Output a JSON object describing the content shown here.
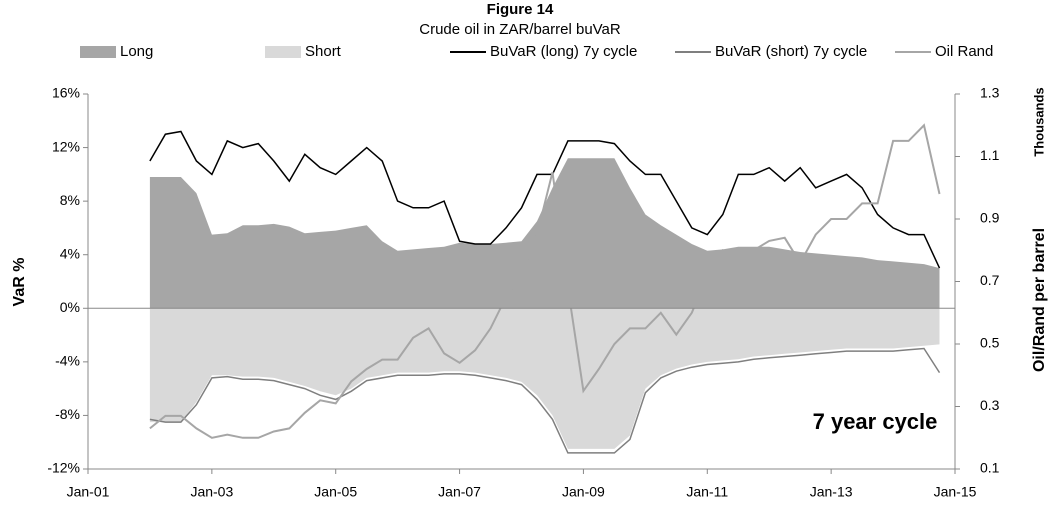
{
  "chart_data": {
    "type": "line",
    "title": "Figure 14",
    "subtitle": "Crude oil in ZAR/barrel buVaR",
    "ylabel": "VaR %",
    "y2label": "Oil/Rand per barrel",
    "y2unit": "Thousands",
    "annotation": "7 year cycle",
    "x": [
      2002,
      2002.25,
      2002.5,
      2002.75,
      2003,
      2003.25,
      2003.5,
      2003.75,
      2004,
      2004.25,
      2004.5,
      2004.75,
      2005,
      2005.25,
      2005.5,
      2005.75,
      2006,
      2006.25,
      2006.5,
      2006.75,
      2007,
      2007.25,
      2007.5,
      2007.75,
      2008,
      2008.25,
      2008.5,
      2008.75,
      2009,
      2009.25,
      2009.5,
      2009.75,
      2010,
      2010.25,
      2010.5,
      2010.75,
      2011,
      2011.25,
      2011.5,
      2011.75,
      2012,
      2012.25,
      2012.5,
      2012.75,
      2013,
      2013.25,
      2013.5,
      2013.75,
      2014,
      2014.25,
      2014.5,
      2014.75
    ],
    "xlim": [
      2001,
      2015
    ],
    "xticks": [
      {
        "value": 2001,
        "label": "Jan-01"
      },
      {
        "value": 2003,
        "label": "Jan-03"
      },
      {
        "value": 2005,
        "label": "Jan-05"
      },
      {
        "value": 2007,
        "label": "Jan-07"
      },
      {
        "value": 2009,
        "label": "Jan-09"
      },
      {
        "value": 2011,
        "label": "Jan-11"
      },
      {
        "value": 2013,
        "label": "Jan-13"
      },
      {
        "value": 2015,
        "label": "Jan-15"
      }
    ],
    "ylim": [
      -12,
      16
    ],
    "yticks": [
      {
        "value": -12,
        "label": "-12%"
      },
      {
        "value": -8,
        "label": "-8%"
      },
      {
        "value": -4,
        "label": "-4%"
      },
      {
        "value": 0,
        "label": "0%"
      },
      {
        "value": 4,
        "label": "4%"
      },
      {
        "value": 8,
        "label": "8%"
      },
      {
        "value": 12,
        "label": "12%"
      },
      {
        "value": 16,
        "label": "16%"
      }
    ],
    "y2lim": [
      0.1,
      1.3
    ],
    "y2ticks": [
      0.1,
      0.3,
      0.5,
      0.7,
      0.9,
      1.1,
      1.3
    ],
    "legend": "top",
    "series": [
      {
        "name": "Long",
        "style": "area",
        "color": "#a6a6a6",
        "values": [
          9.8,
          9.8,
          9.8,
          8.6,
          5.5,
          5.6,
          6.2,
          6.2,
          6.3,
          6.1,
          5.6,
          5.7,
          5.8,
          6.0,
          6.2,
          5.0,
          4.3,
          4.4,
          4.5,
          4.6,
          4.9,
          4.8,
          4.8,
          4.9,
          5.0,
          6.5,
          9.0,
          11.2,
          11.2,
          11.2,
          11.2,
          9.0,
          7.0,
          6.2,
          5.5,
          4.8,
          4.3,
          4.4,
          4.6,
          4.6,
          4.6,
          4.4,
          4.2,
          4.1,
          4.0,
          3.9,
          3.8,
          3.6,
          3.5,
          3.4,
          3.3,
          3.0
        ]
      },
      {
        "name": "Short",
        "style": "area",
        "color": "#d9d9d9",
        "values": [
          -8.5,
          -8.5,
          -8.5,
          -7.0,
          -5.0,
          -5.0,
          -5.1,
          -5.1,
          -5.2,
          -5.5,
          -5.8,
          -6.2,
          -6.5,
          -6.0,
          -5.2,
          -5.0,
          -4.8,
          -4.8,
          -4.8,
          -4.7,
          -4.7,
          -4.8,
          -5.0,
          -5.2,
          -5.5,
          -6.5,
          -8.0,
          -10.5,
          -10.5,
          -10.5,
          -10.5,
          -9.5,
          -6.0,
          -5.0,
          -4.5,
          -4.2,
          -4.0,
          -3.9,
          -3.8,
          -3.6,
          -3.5,
          -3.4,
          -3.3,
          -3.2,
          -3.1,
          -3.0,
          -3.0,
          -3.0,
          -3.0,
          -2.9,
          -2.8,
          -2.7
        ]
      },
      {
        "name": "BuVaR (long) 7y cycle",
        "style": "line",
        "color": "#000000",
        "values": [
          11,
          13,
          13.2,
          11,
          10,
          12.5,
          12,
          12.3,
          11,
          9.5,
          11.5,
          10.5,
          10,
          11,
          12,
          11,
          8,
          7.5,
          7.5,
          8,
          5,
          4.8,
          4.8,
          6,
          7.5,
          10,
          10,
          12.5,
          12.5,
          12.5,
          12.3,
          11,
          10,
          10,
          8,
          6,
          5.5,
          7,
          10,
          10,
          10.5,
          9.5,
          10.5,
          9,
          9.5,
          10,
          9,
          7,
          6,
          5.5,
          5.5,
          3
        ]
      },
      {
        "name": "BuVaR (short) 7y cycle",
        "style": "line",
        "color": "#7f7f7f",
        "values": [
          -8.3,
          -8.5,
          -8.5,
          -7.2,
          -5.2,
          -5.1,
          -5.3,
          -5.3,
          -5.4,
          -5.7,
          -6.0,
          -6.5,
          -6.8,
          -6.2,
          -5.4,
          -5.2,
          -5.0,
          -5.0,
          -5.0,
          -4.9,
          -4.9,
          -5.0,
          -5.2,
          -5.4,
          -5.7,
          -6.8,
          -8.3,
          -10.8,
          -10.8,
          -10.8,
          -10.8,
          -9.8,
          -6.3,
          -5.2,
          -4.7,
          -4.4,
          -4.2,
          -4.1,
          -4.0,
          -3.8,
          -3.7,
          -3.6,
          -3.5,
          -3.4,
          -3.3,
          -3.2,
          -3.2,
          -3.2,
          -3.2,
          -3.1,
          -3.0,
          -4.8
        ]
      },
      {
        "name": "Oil Rand",
        "style": "line",
        "axis": "y2",
        "color": "#a6a6a6",
        "values": [
          0.23,
          0.27,
          0.27,
          0.23,
          0.2,
          0.21,
          0.2,
          0.2,
          0.22,
          0.23,
          0.28,
          0.32,
          0.31,
          0.38,
          0.42,
          0.45,
          0.45,
          0.52,
          0.55,
          0.47,
          0.44,
          0.48,
          0.55,
          0.65,
          0.72,
          0.85,
          1.05,
          0.68,
          0.35,
          0.42,
          0.5,
          0.55,
          0.55,
          0.6,
          0.53,
          0.6,
          0.72,
          0.8,
          0.78,
          0.8,
          0.83,
          0.84,
          0.76,
          0.85,
          0.9,
          0.9,
          0.95,
          0.95,
          1.15,
          1.15,
          1.2,
          0.98
        ]
      }
    ]
  }
}
